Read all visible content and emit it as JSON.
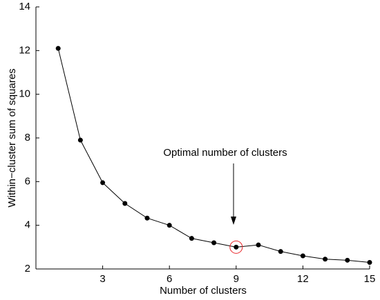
{
  "chart_data": {
    "type": "line",
    "x": [
      1,
      2,
      3,
      4,
      5,
      6,
      7,
      8,
      9,
      10,
      11,
      12,
      13,
      14,
      15
    ],
    "values": [
      12.1,
      7.9,
      5.95,
      5.0,
      4.33,
      4.0,
      3.4,
      3.2,
      3.0,
      3.1,
      2.8,
      2.6,
      2.45,
      2.4,
      2.3
    ],
    "color": "#000000",
    "xlabel": "Number of clusters",
    "ylabel": "Within−cluster sum of squares",
    "xlim": [
      0,
      15
    ],
    "ylim": [
      2,
      14
    ],
    "xticks": [
      3,
      6,
      9,
      12,
      15
    ],
    "yticks": [
      2,
      4,
      6,
      8,
      10,
      12,
      14
    ],
    "annotation": {
      "text": "Optimal number of clusters",
      "x": 9,
      "color": "#e8262a"
    }
  }
}
